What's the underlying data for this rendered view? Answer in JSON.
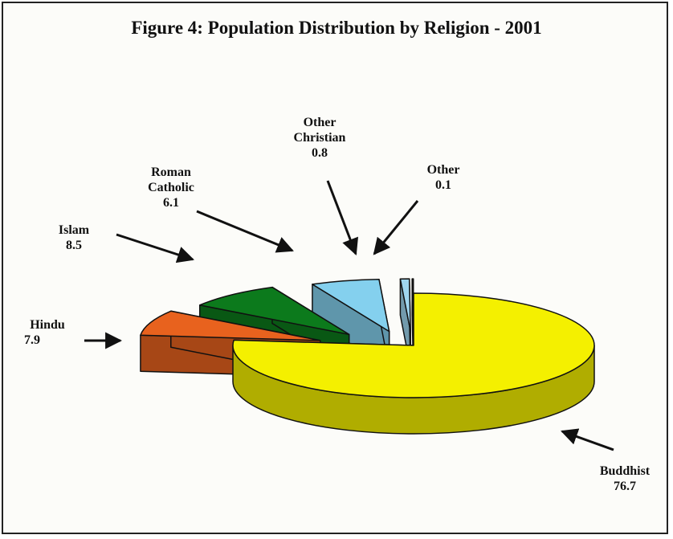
{
  "chart_data": {
    "type": "pie3d",
    "title": "Figure 4: Population Distribution by Religion - 2001",
    "categories": [
      "Buddhist",
      "Hindu",
      "Islam",
      "Roman Catholic",
      "Other Christian",
      "Other"
    ],
    "values": [
      76.7,
      7.9,
      8.5,
      6.1,
      0.8,
      0.1
    ],
    "colors": [
      "#f4f000",
      "#e8621e",
      "#0c7a1c",
      "#84d0ee",
      "#9fd6ef",
      "#b7a6d8"
    ]
  }
}
